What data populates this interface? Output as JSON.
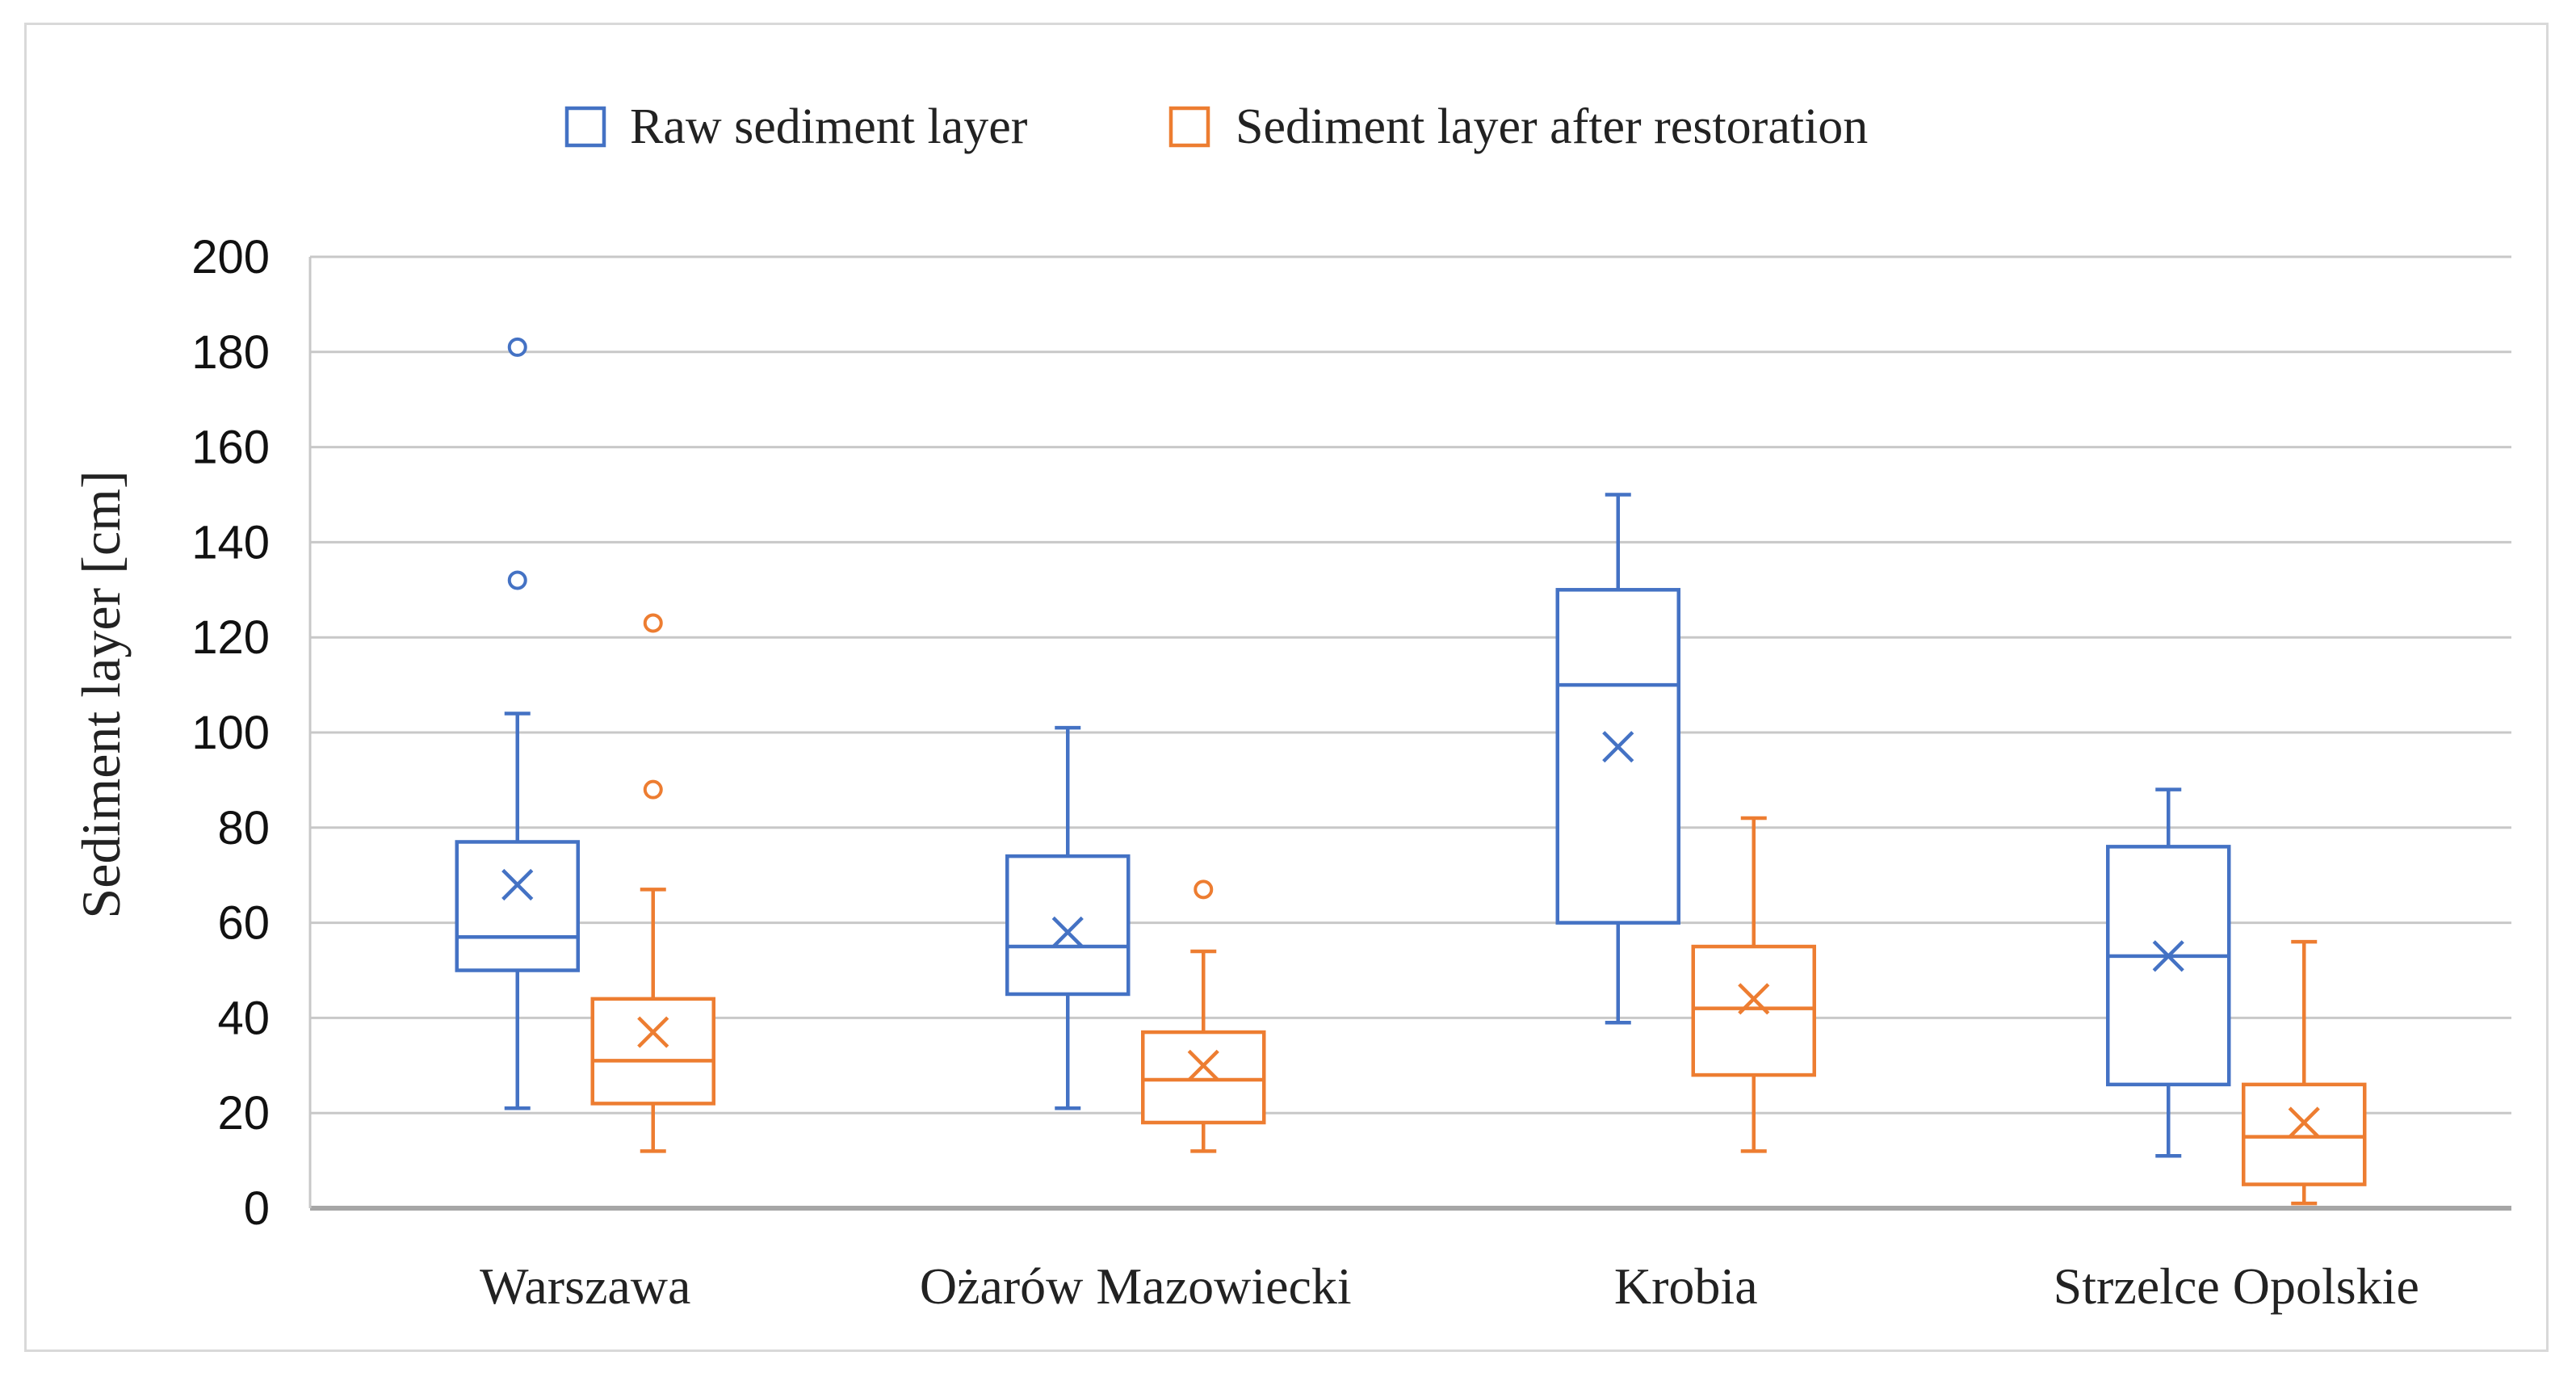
{
  "chart_data": {
    "type": "boxplot",
    "ylabel": "Sediment layer [cm]",
    "xlabel": "",
    "ylim": [
      0,
      200
    ],
    "yticks": [
      0,
      20,
      40,
      60,
      80,
      100,
      120,
      140,
      160,
      180,
      200
    ],
    "grid": true,
    "legend_position": "top",
    "categories": [
      "Warszawa",
      "Ożarów Mazowiecki",
      "Krobia",
      "Strzelce Opolskie"
    ],
    "series": [
      {
        "name": "Raw sediment layer",
        "color": "#4472c4",
        "boxes": [
          {
            "min": 21,
            "q1": 50,
            "median": 57,
            "q3": 77,
            "max": 104,
            "mean": 68,
            "outliers": [
              132,
              181
            ]
          },
          {
            "min": 21,
            "q1": 45,
            "median": 55,
            "q3": 74,
            "max": 101,
            "mean": 58,
            "outliers": []
          },
          {
            "min": 39,
            "q1": 60,
            "median": 110,
            "q3": 130,
            "max": 150,
            "mean": 97,
            "outliers": []
          },
          {
            "min": 11,
            "q1": 26,
            "median": 53,
            "q3": 76,
            "max": 88,
            "mean": 53,
            "outliers": []
          }
        ]
      },
      {
        "name": "Sediment layer after restoration",
        "color": "#ed7d31",
        "boxes": [
          {
            "min": 12,
            "q1": 22,
            "median": 31,
            "q3": 44,
            "max": 67,
            "mean": 37,
            "outliers": [
              88,
              123
            ]
          },
          {
            "min": 12,
            "q1": 18,
            "median": 27,
            "q3": 37,
            "max": 54,
            "mean": 30,
            "outliers": [
              67
            ]
          },
          {
            "min": 12,
            "q1": 28,
            "median": 42,
            "q3": 55,
            "max": 82,
            "mean": 44,
            "outliers": []
          },
          {
            "min": 1,
            "q1": 5,
            "median": 15,
            "q3": 26,
            "max": 56,
            "mean": 18,
            "outliers": []
          }
        ]
      }
    ]
  }
}
